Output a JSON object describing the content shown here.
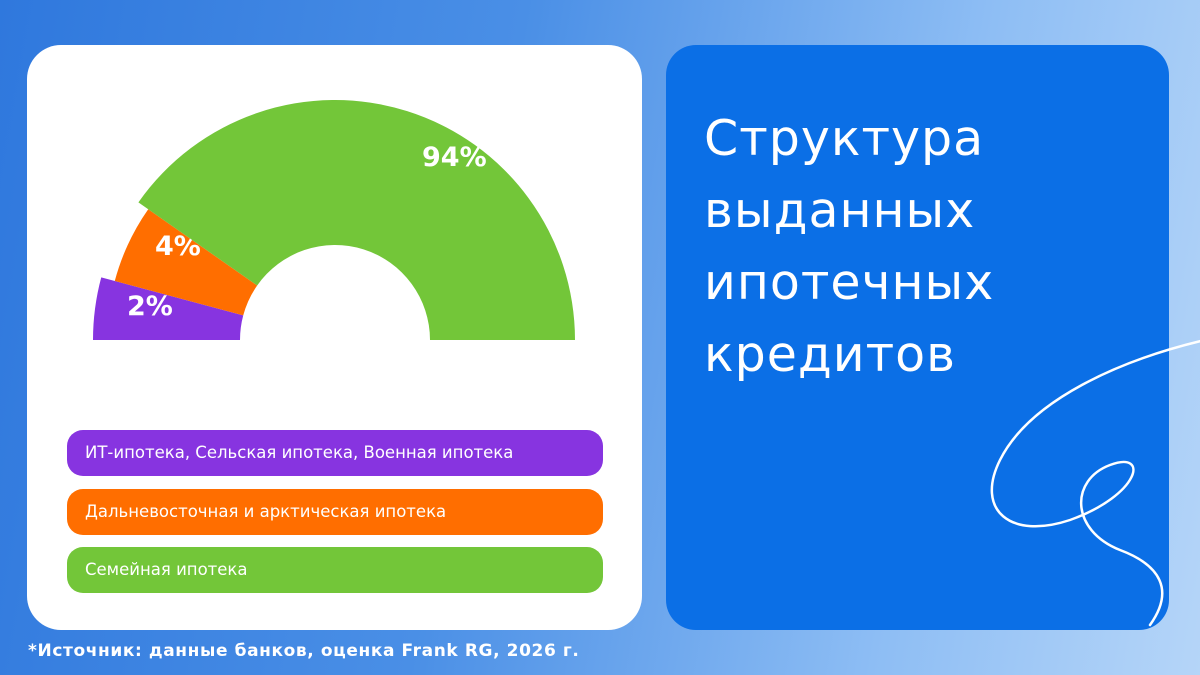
{
  "title_lines": [
    "Структура",
    "выданных",
    "ипотечных",
    "кредитов"
  ],
  "chart_data": {
    "type": "pie",
    "variant": "half-donut",
    "categories": [
      "ИТ-ипотека, Сельская ипотека, Военная ипотека",
      "Дальневосточная и арктическая ипотека",
      "Семейная ипотека"
    ],
    "values": [
      2,
      4,
      94
    ],
    "labels": [
      "2%",
      "4%",
      "94%"
    ],
    "colors": [
      "#8734e0",
      "#ff6e00",
      "#73c639"
    ],
    "legend_position": "bottom"
  },
  "source": "*Источник: данные банков, оценка Frank RG, 2026 г."
}
